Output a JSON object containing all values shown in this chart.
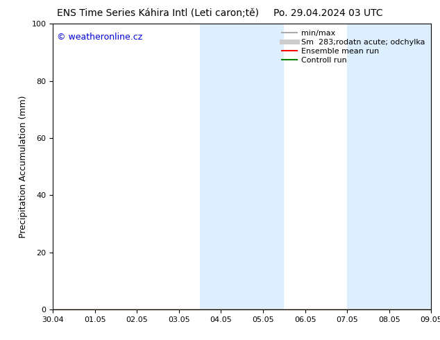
{
  "title_left": "ENS Time Series Káhira Intl (Leti caron;tě)",
  "title_right": "Po. 29.04.2024 03 UTC",
  "ylabel": "Precipitation Accumulation (mm)",
  "ylim": [
    0,
    100
  ],
  "yticks": [
    0,
    20,
    40,
    60,
    80,
    100
  ],
  "x_tick_labels": [
    "30.04",
    "01.05",
    "02.05",
    "03.05",
    "04.05",
    "05.05",
    "06.05",
    "07.05",
    "08.05",
    "09.05"
  ],
  "x_num_ticks": 10,
  "xlim": [
    0,
    9
  ],
  "watermark": "© weatheronline.cz",
  "watermark_color": "#0000dd",
  "shaded_regions": [
    {
      "x_start": 3.5,
      "x_end": 5.5
    },
    {
      "x_start": 7.0,
      "x_end": 9.0
    }
  ],
  "shaded_color": "#ddeeff",
  "background_color": "#ffffff",
  "minmax_color": "#aaaaaa",
  "spread_color": "#cccccc",
  "mean_color": "#ff0000",
  "control_color": "#008000",
  "title_fontsize": 10,
  "axis_label_fontsize": 9,
  "tick_fontsize": 8,
  "legend_fontsize": 8,
  "watermark_fontsize": 9
}
